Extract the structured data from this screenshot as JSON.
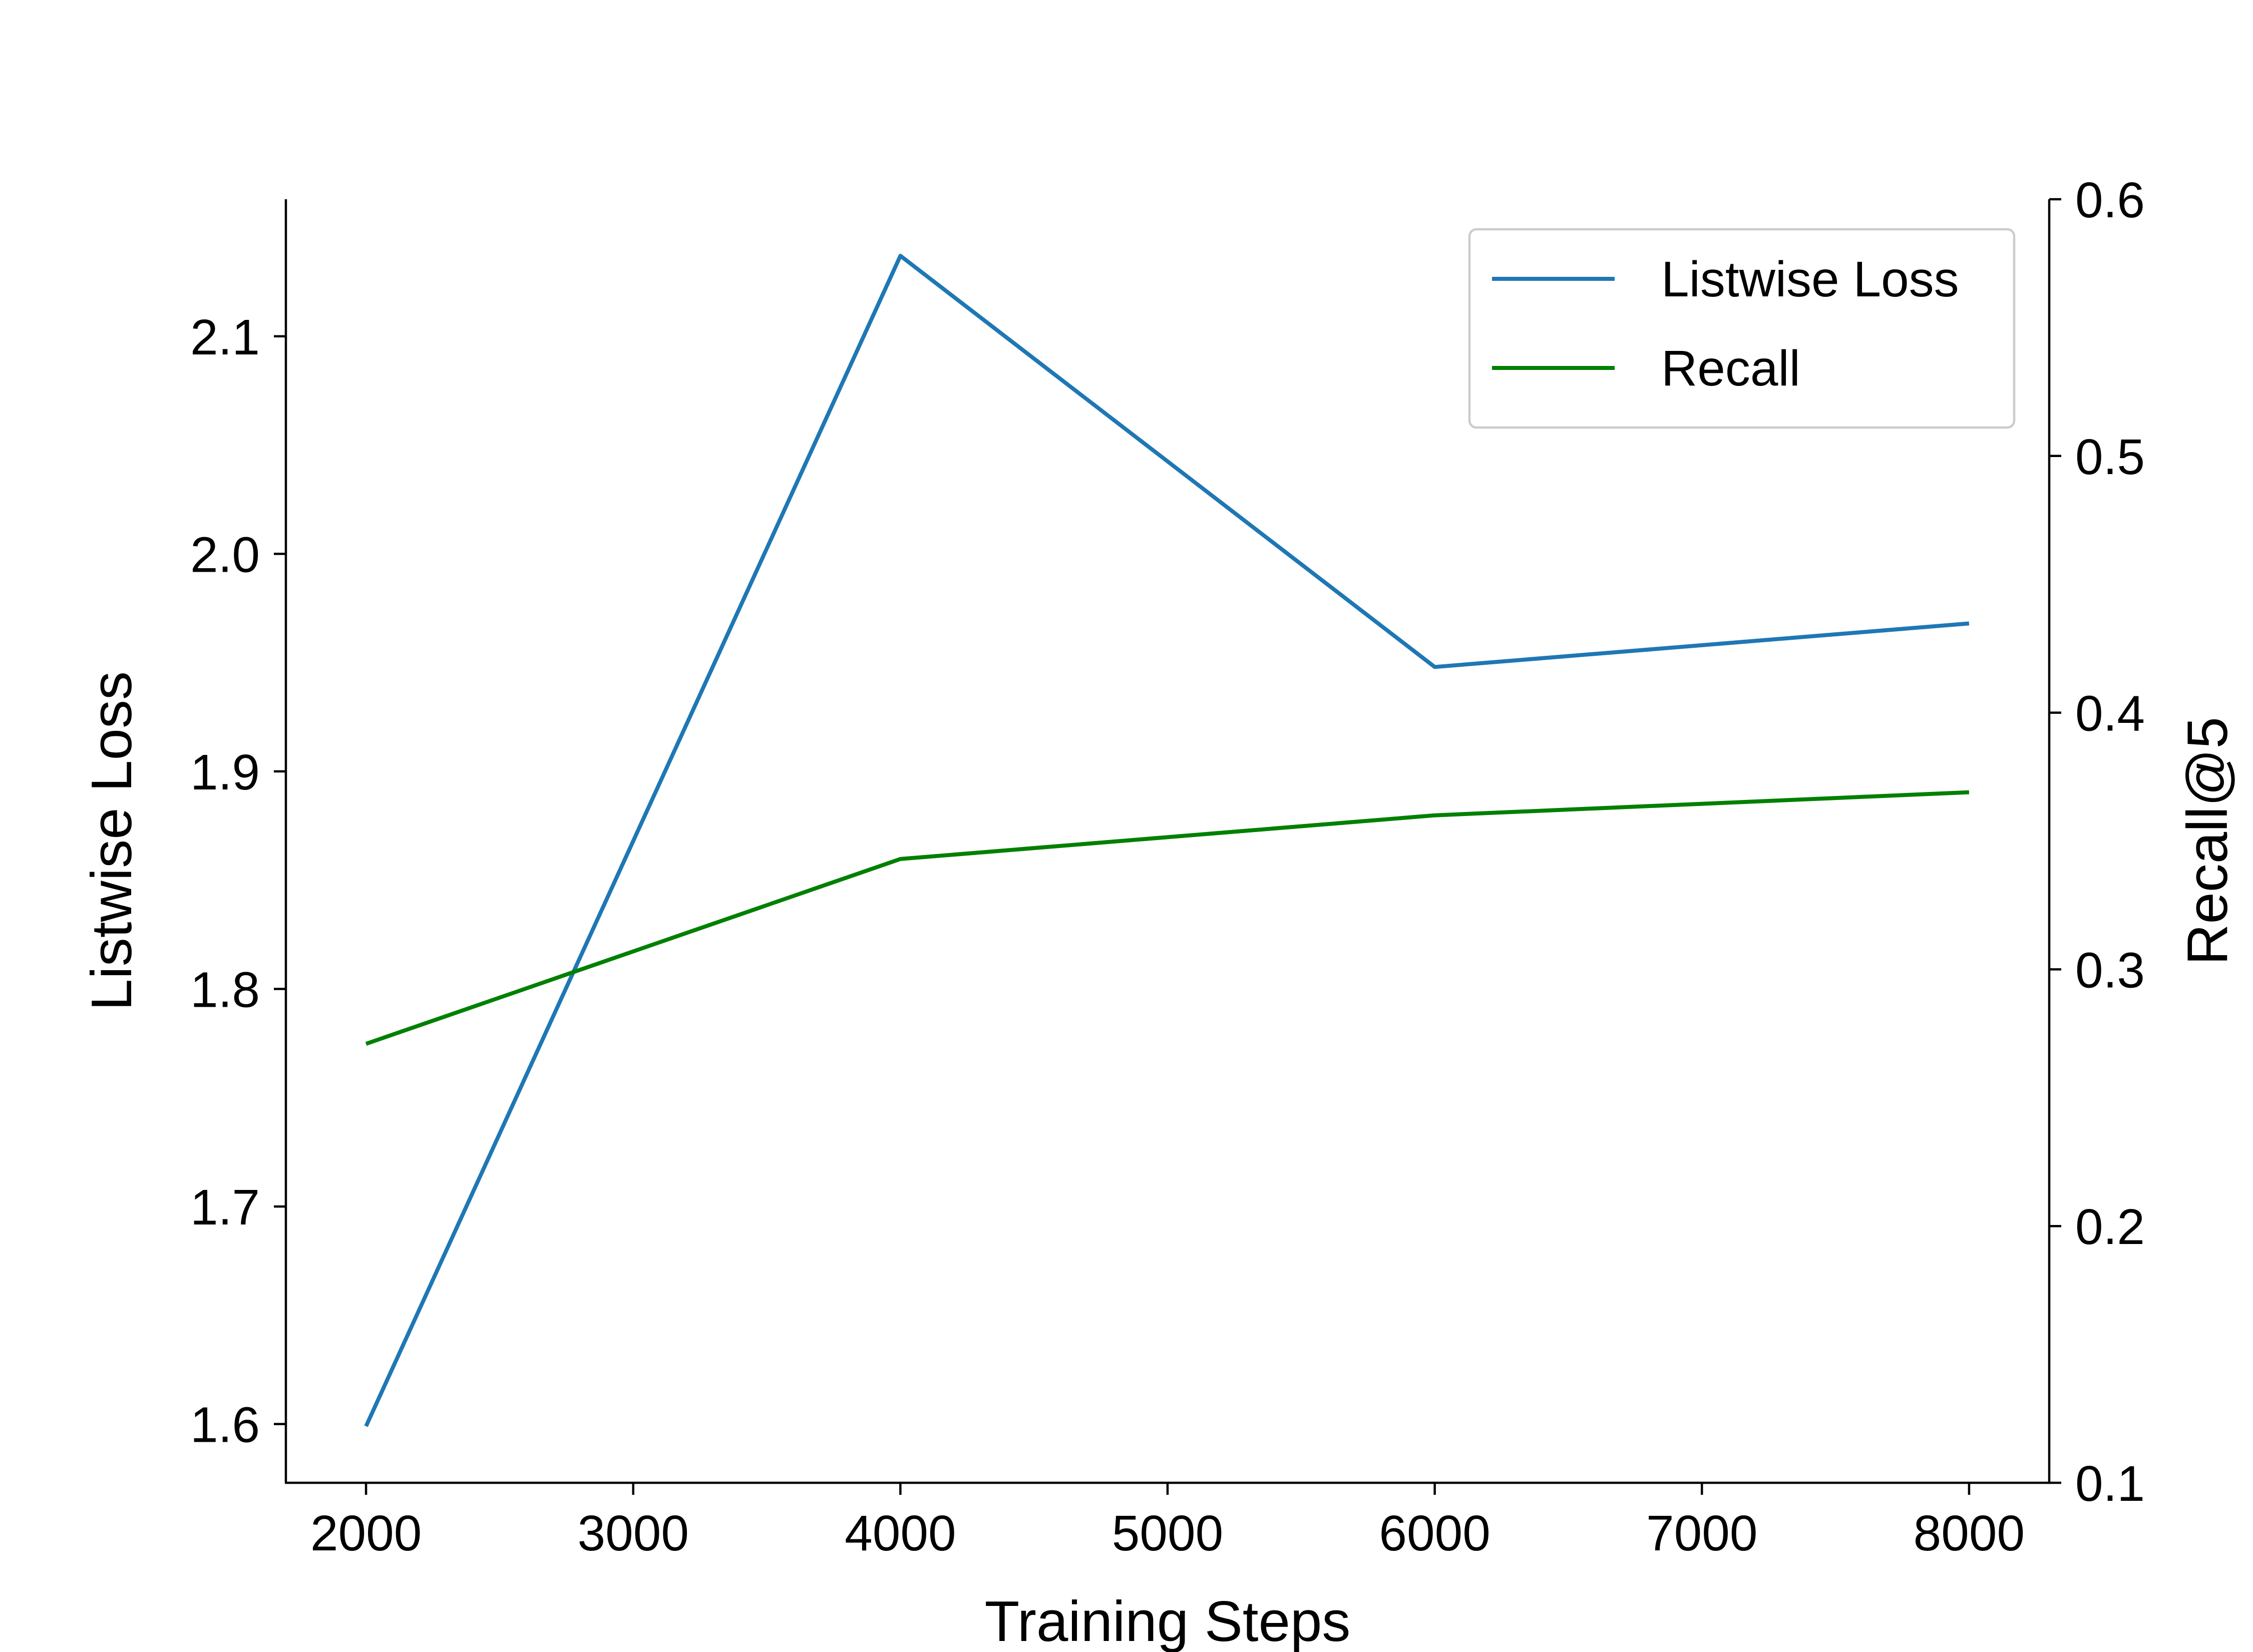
{
  "chart_data": {
    "type": "line",
    "xlabel": "Training Steps",
    "ylabel_left": "Listwise Loss",
    "ylabel_right": "Recall@5",
    "x": [
      2000,
      4000,
      6000,
      8000
    ],
    "xlim": [
      1700,
      8300
    ],
    "xticks": [
      2000,
      3000,
      4000,
      5000,
      6000,
      7000,
      8000
    ],
    "ylim_left": [
      1.573,
      2.163
    ],
    "yticks_left": [
      1.6,
      1.7,
      1.8,
      1.9,
      2.0,
      2.1
    ],
    "ylim_right": [
      0.1,
      0.6
    ],
    "yticks_right": [
      0.1,
      0.2,
      0.3,
      0.4,
      0.5,
      0.6
    ],
    "grid": false,
    "legend_position": "top-right",
    "series": [
      {
        "name": "Listwise Loss",
        "axis": "left",
        "color": "#1f77b4",
        "values": [
          1.599,
          2.137,
          1.948,
          1.968
        ]
      },
      {
        "name": "Recall",
        "axis": "right",
        "color": "#008000",
        "values": [
          0.271,
          0.343,
          0.36,
          0.369
        ]
      }
    ]
  }
}
